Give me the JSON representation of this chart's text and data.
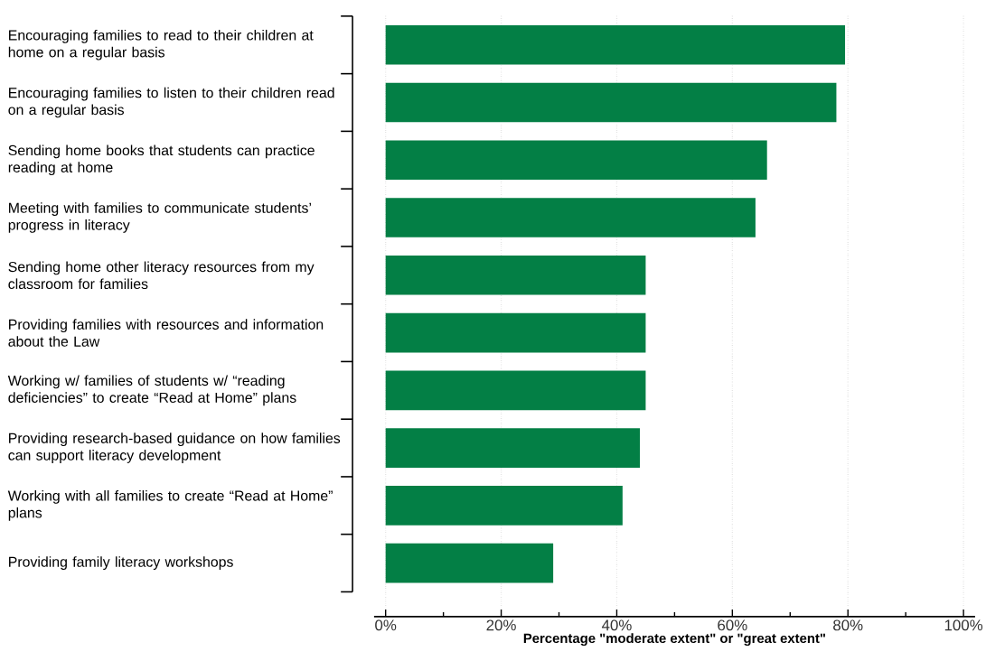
{
  "chart_data": {
    "type": "bar",
    "orientation": "horizontal",
    "xlabel": "Percentage \"moderate extent\" or \"great extent\"",
    "categories": [
      "Encouraging families to read to their children at home on a regular basis",
      "Encouraging families to listen to their children read on a regular basis",
      "Sending home books that students can practice reading at home",
      "Meeting with families to communicate students’ progress in literacy",
      "Sending home other literacy resources from my classroom for families",
      "Providing families with resources and information about the Law",
      "Working w/ families of students w/ “reading deficiencies” to create “Read at Home” plans",
      "Providing research-based guidance on how families can support literacy development",
      "Working with all families to create “Read at Home” plans",
      "Providing family literacy workshops"
    ],
    "values": [
      79.5,
      78,
      66,
      64,
      45,
      45,
      45,
      44,
      41,
      29
    ],
    "color": "#037f45",
    "xlim": [
      -2,
      102
    ],
    "xticks": [
      {
        "value": 0,
        "label": "0%"
      },
      {
        "value": 20,
        "label": "20%"
      },
      {
        "value": 40,
        "label": "40%"
      },
      {
        "value": 60,
        "label": "60%"
      },
      {
        "value": 80,
        "label": "80%"
      },
      {
        "value": 100,
        "label": "100%"
      }
    ],
    "grid": "x"
  }
}
